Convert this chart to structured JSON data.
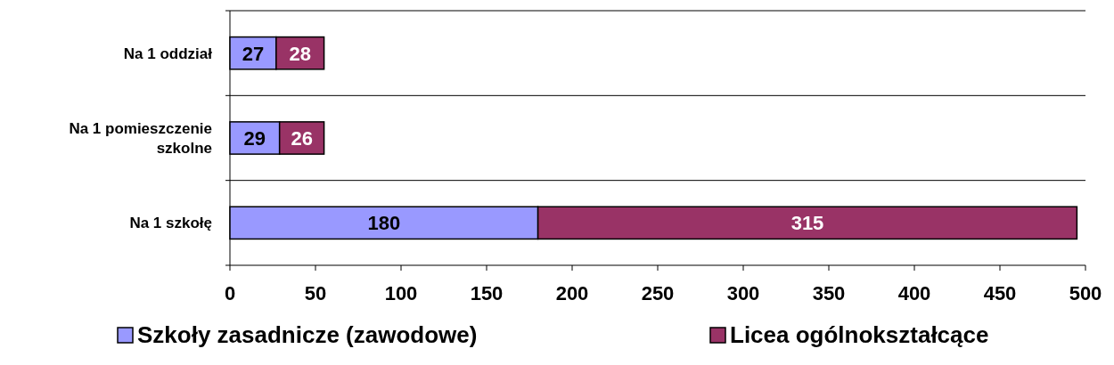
{
  "chart_data": {
    "type": "bar",
    "orientation": "horizontal",
    "stacked": true,
    "categories": [
      "Na 1 oddział",
      "Na 1 pomieszczenie szkolne",
      "Na 1 szkołę"
    ],
    "series": [
      {
        "name": "Szkoły zasadnicze (zawodowe)",
        "color": "#9999ff",
        "values": [
          27,
          29,
          180
        ]
      },
      {
        "name": "Licea ogólnokształcące",
        "color": "#993366",
        "values": [
          28,
          26,
          315
        ]
      }
    ],
    "xlim": [
      0,
      500
    ],
    "xticks": [
      0,
      50,
      100,
      150,
      200,
      250,
      300,
      350,
      400,
      450,
      500
    ],
    "grid": "y",
    "legend": "bottom",
    "data_labels": true
  }
}
